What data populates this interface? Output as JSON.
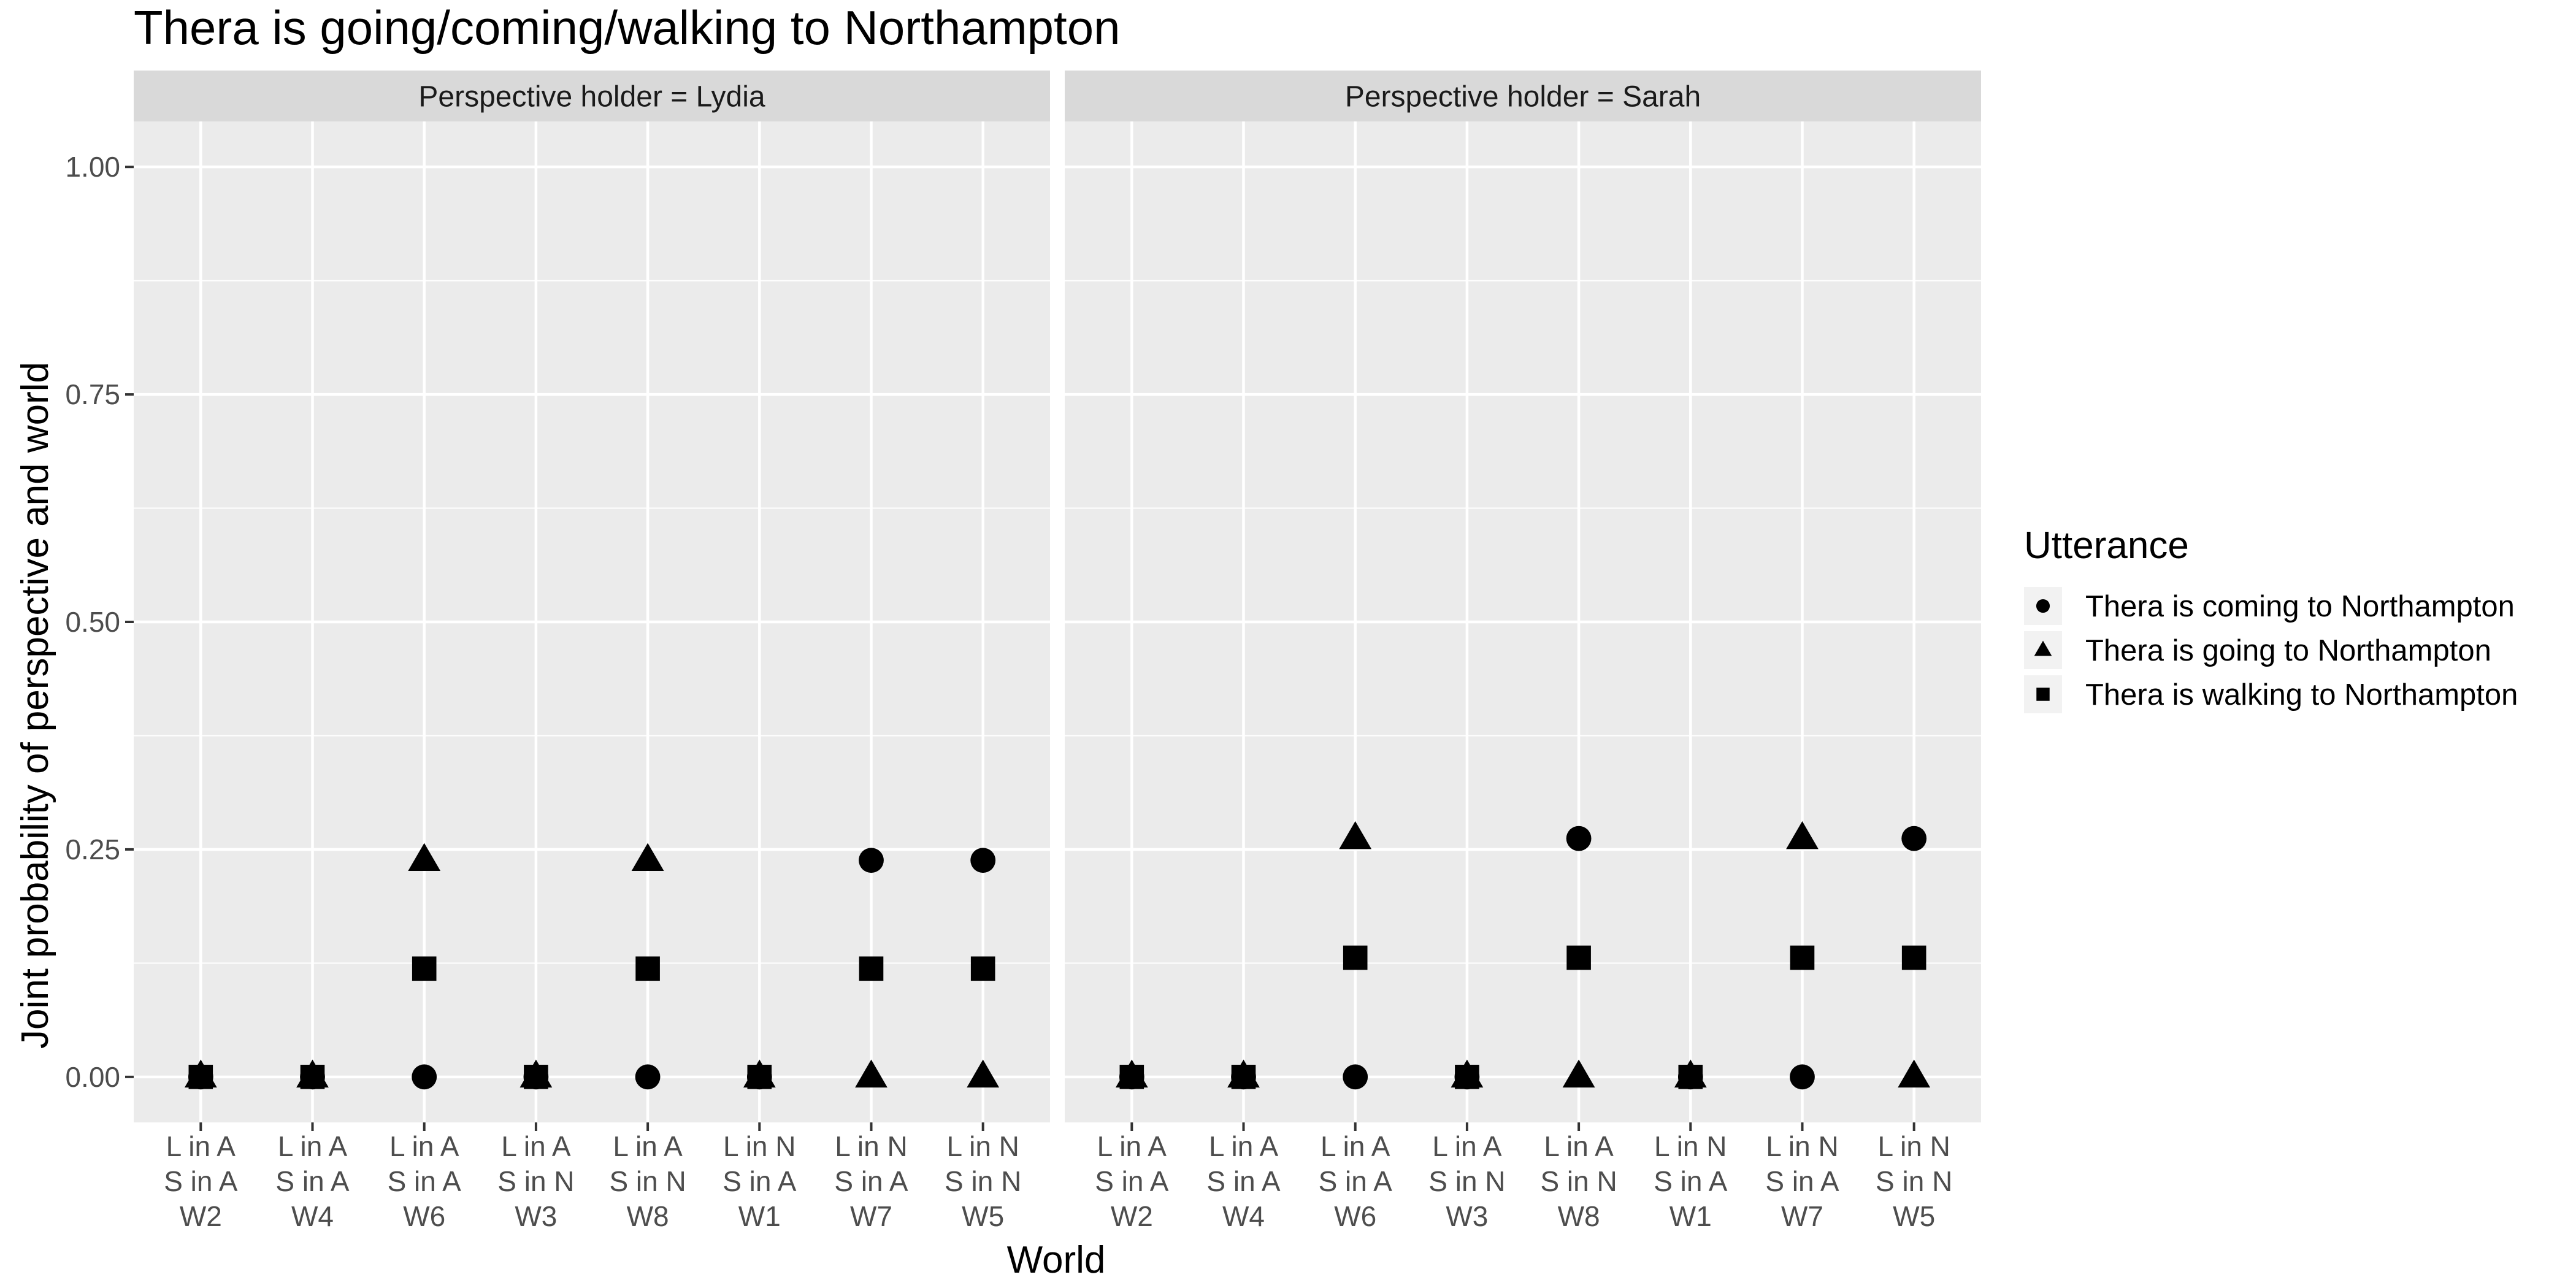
{
  "chart_data": {
    "type": "scatter",
    "title": "Thera is going/coming/walking to Northampton",
    "xlabel": "World",
    "ylabel": "Joint probability of perspective and world",
    "ylim": [
      -0.05,
      1.05
    ],
    "y_ticks": [
      {
        "value": 0.0,
        "label": "0.00"
      },
      {
        "value": 0.25,
        "label": "0.25"
      },
      {
        "value": 0.5,
        "label": "0.50"
      },
      {
        "value": 0.75,
        "label": "0.75"
      },
      {
        "value": 1.0,
        "label": "1.00"
      }
    ],
    "grid": true,
    "legend_position": "right",
    "legend": {
      "title": "Utterance",
      "entries": [
        {
          "label": "Thera is coming to Northampton",
          "shape": "circle"
        },
        {
          "label": "Thera is going to Northampton",
          "shape": "triangle"
        },
        {
          "label": "Thera is walking to Northampton",
          "shape": "square"
        }
      ]
    },
    "categories": [
      {
        "line1": "L in A",
        "line2": "S in A",
        "line3": "W2"
      },
      {
        "line1": "L in A",
        "line2": "S in A",
        "line3": "W4"
      },
      {
        "line1": "L in A",
        "line2": "S in A",
        "line3": "W6"
      },
      {
        "line1": "L in A",
        "line2": "S in N",
        "line3": "W3"
      },
      {
        "line1": "L in A",
        "line2": "S in N",
        "line3": "W8"
      },
      {
        "line1": "L in N",
        "line2": "S in A",
        "line3": "W1"
      },
      {
        "line1": "L in N",
        "line2": "S in A",
        "line3": "W7"
      },
      {
        "line1": "L in N",
        "line2": "S in N",
        "line3": "W5"
      }
    ],
    "facets": [
      {
        "label": "Perspective holder = Lydia",
        "series": [
          {
            "shape": "circle",
            "values": [
              0,
              0,
              0,
              0,
              0,
              0,
              0.238,
              0.238
            ]
          },
          {
            "shape": "triangle",
            "values": [
              0,
              0,
              0.238,
              0,
              0.238,
              0,
              0,
              0
            ]
          },
          {
            "shape": "square",
            "values": [
              0,
              0,
              0.119,
              0,
              0.119,
              0,
              0.119,
              0.119
            ]
          }
        ]
      },
      {
        "label": "Perspective holder = Sarah",
        "series": [
          {
            "shape": "circle",
            "values": [
              0,
              0,
              0,
              0,
              0.262,
              0,
              0,
              0.262
            ]
          },
          {
            "shape": "triangle",
            "values": [
              0,
              0,
              0.262,
              0,
              0,
              0,
              0.262,
              0
            ]
          },
          {
            "shape": "square",
            "values": [
              0,
              0,
              0.131,
              0,
              0.131,
              0,
              0.131,
              0.131
            ]
          }
        ]
      }
    ]
  }
}
